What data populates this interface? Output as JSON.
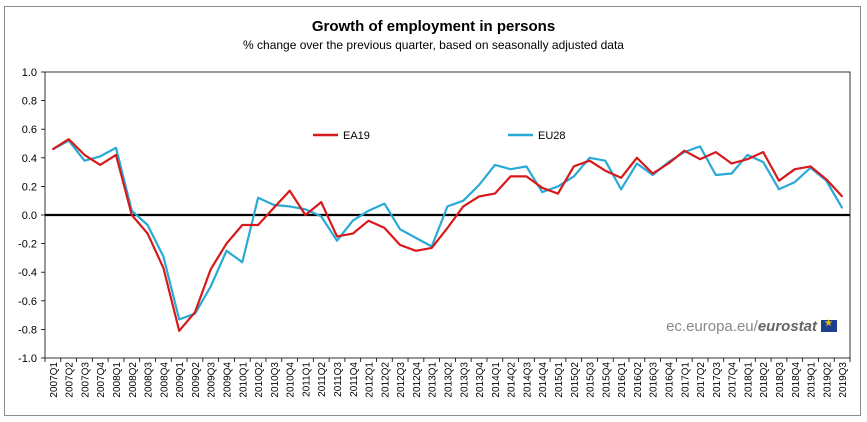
{
  "title": "Growth of employment in persons",
  "subtitle": "% change over the previous quarter, based on seasonally adjusted data",
  "credit": {
    "site": "ec.europa.eu/",
    "brand": "eurostat",
    "icon": "eu-flag-icon"
  },
  "chart_data": {
    "type": "line",
    "title": "Growth of employment in persons",
    "subtitle": "% change over the previous quarter, based on seasonally adjusted data",
    "ylim": [
      -1.0,
      1.0
    ],
    "yticks": [
      "1.0",
      "0.8",
      "0.6",
      "0.4",
      "0.2",
      "0.0",
      "-0.2",
      "-0.4",
      "-0.6",
      "-0.8",
      "-1.0"
    ],
    "grid": false,
    "legend": "top-center",
    "categories": [
      "2007Q1",
      "2007Q2",
      "2007Q3",
      "2007Q4",
      "2008Q1",
      "2008Q2",
      "2008Q3",
      "2008Q4",
      "2009Q1",
      "2009Q2",
      "2009Q3",
      "2009Q4",
      "2010Q1",
      "2010Q2",
      "2010Q3",
      "2010Q4",
      "2011Q1",
      "2011Q2",
      "2011Q3",
      "2011Q4",
      "2012Q1",
      "2012Q2",
      "2012Q3",
      "2012Q4",
      "2013Q1",
      "2013Q2",
      "2013Q3",
      "2013Q4",
      "2014Q1",
      "2014Q2",
      "2014Q3",
      "2014Q4",
      "2015Q1",
      "2015Q2",
      "2015Q3",
      "2015Q4",
      "2016Q1",
      "2016Q2",
      "2016Q3",
      "2016Q4",
      "2017Q1",
      "2017Q2",
      "2017Q3",
      "2017Q4",
      "2018Q1",
      "2018Q2",
      "2018Q3",
      "2018Q4",
      "2019Q1",
      "2019Q2",
      "2019Q3"
    ],
    "series": [
      {
        "name": "EA19",
        "color": "#d7191c",
        "values": [
          0.46,
          0.53,
          0.42,
          0.35,
          0.42,
          0.0,
          -0.13,
          -0.37,
          -0.81,
          -0.68,
          -0.38,
          -0.2,
          -0.07,
          -0.07,
          0.05,
          0.17,
          0.0,
          0.09,
          -0.15,
          -0.13,
          -0.04,
          -0.09,
          -0.21,
          -0.25,
          -0.23,
          -0.09,
          0.06,
          0.13,
          0.15,
          0.27,
          0.27,
          0.19,
          0.15,
          0.34,
          0.38,
          0.31,
          0.26,
          0.4,
          0.29,
          0.36,
          0.45,
          0.39,
          0.44,
          0.36,
          0.39,
          0.44,
          0.24,
          0.32,
          0.34,
          0.25,
          0.13
        ]
      },
      {
        "name": "EU28",
        "color": "#29a9d6",
        "values": [
          0.46,
          0.52,
          0.38,
          0.41,
          0.47,
          0.03,
          -0.07,
          -0.29,
          -0.73,
          -0.69,
          -0.5,
          -0.25,
          -0.33,
          0.12,
          0.07,
          0.06,
          0.04,
          -0.01,
          -0.18,
          -0.04,
          0.03,
          0.08,
          -0.1,
          -0.16,
          -0.22,
          0.06,
          0.1,
          0.21,
          0.35,
          0.32,
          0.34,
          0.16,
          0.2,
          0.27,
          0.4,
          0.38,
          0.18,
          0.36,
          0.28,
          0.37,
          0.44,
          0.48,
          0.28,
          0.29,
          0.42,
          0.37,
          0.18,
          0.23,
          0.33,
          0.24,
          0.05
        ]
      }
    ]
  }
}
